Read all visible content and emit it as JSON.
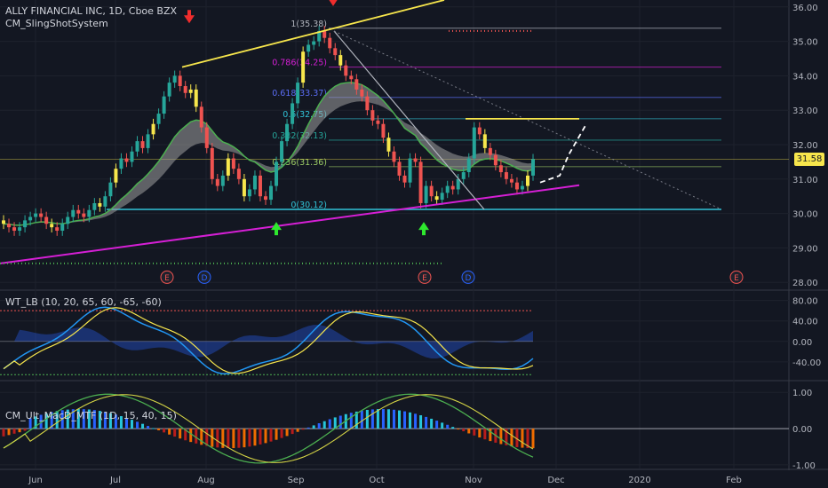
{
  "main": {
    "title": "ALLY FINANCIAL INC, 1D, Cboe BZX",
    "indicator": "CM_SlingShotSystem",
    "current_price": "31.58"
  },
  "wt": {
    "label": "WT_LB (10, 20, 65, 60, -65, -60)"
  },
  "macd": {
    "label": "CM_Ult_MacD_MTF (1D, 15, 40, 15)"
  },
  "colors": {
    "background": "#131722",
    "up": "#26a69a",
    "down": "#ef5350",
    "trend": "#f7e64c",
    "support": "#31c4d8",
    "lower_trend": "#d51fd5",
    "ema_band": "#9e9e9e",
    "price_tag": "#f7e64c"
  },
  "chart_data": [
    {
      "type": "candlestick",
      "title": "ALLY FINANCIAL INC, 1D, Cboe BZX",
      "x_labels": [
        "Jun",
        "Jul",
        "Aug",
        "Sep",
        "Oct",
        "Nov",
        "Dec",
        "2020",
        "Feb"
      ],
      "y_ticks": [
        "36.00",
        "35.00",
        "34.00",
        "33.00",
        "32.00",
        "31.00",
        "30.00",
        "29.00",
        "28.00"
      ],
      "ylim": [
        27.8,
        36.2
      ],
      "close_series": [
        29.7,
        29.6,
        29.5,
        29.6,
        29.8,
        29.9,
        30.0,
        29.9,
        29.7,
        29.6,
        29.5,
        29.7,
        29.9,
        30.1,
        30.0,
        29.9,
        30.1,
        30.3,
        30.2,
        30.5,
        30.9,
        31.3,
        31.6,
        31.5,
        31.8,
        32.1,
        31.9,
        32.3,
        32.6,
        32.9,
        33.4,
        33.8,
        34.0,
        33.7,
        33.5,
        33.6,
        33.1,
        32.5,
        31.9,
        31.0,
        30.8,
        31.1,
        31.6,
        31.3,
        31.0,
        30.5,
        30.7,
        31.1,
        30.5,
        30.4,
        30.8,
        31.5,
        32.1,
        32.6,
        33.2,
        33.8,
        34.7,
        34.9,
        35.0,
        35.3,
        35.1,
        34.8,
        34.6,
        34.3,
        34.0,
        33.9,
        33.6,
        33.4,
        33.0,
        32.7,
        32.6,
        32.2,
        31.8,
        31.5,
        31.1,
        30.9,
        31.6,
        31.5,
        30.3,
        30.8,
        30.5,
        30.4,
        30.6,
        30.8,
        30.7,
        31.0,
        31.2,
        31.6,
        32.5,
        32.3,
        31.9,
        31.7,
        31.4,
        31.2,
        31.0,
        30.9,
        30.7,
        30.8,
        31.1,
        31.58
      ],
      "fib_levels": [
        {
          "label": "1(35.38)",
          "value": 35.38
        },
        {
          "label": "0.786(34.25)",
          "value": 34.25
        },
        {
          "label": "0.618(33.37)",
          "value": 33.37
        },
        {
          "label": "0.5(32.75)",
          "value": 32.75
        },
        {
          "label": "0.382(32.13)",
          "value": 32.13
        },
        {
          "label": "0.236(31.36)",
          "value": 31.36
        },
        {
          "label": "0(30.12)",
          "value": 30.12
        }
      ],
      "markers": [
        "E",
        "D",
        "E",
        "D",
        "E"
      ],
      "arrows_down": 2,
      "arrows_up": 2
    },
    {
      "type": "line",
      "title": "WT_LB (10, 20, 65, 60, -65, -60)",
      "y_ticks": [
        "80.00",
        "40.00",
        "0.00",
        "-40.00"
      ],
      "ylim": [
        -75,
        95
      ]
    },
    {
      "type": "line",
      "title": "CM_Ult_MacD_MTF (1D, 15, 40, 15)",
      "y_ticks": [
        "1.00",
        "0.00",
        "-1.00"
      ],
      "ylim": [
        -1.1,
        1.25
      ]
    }
  ]
}
